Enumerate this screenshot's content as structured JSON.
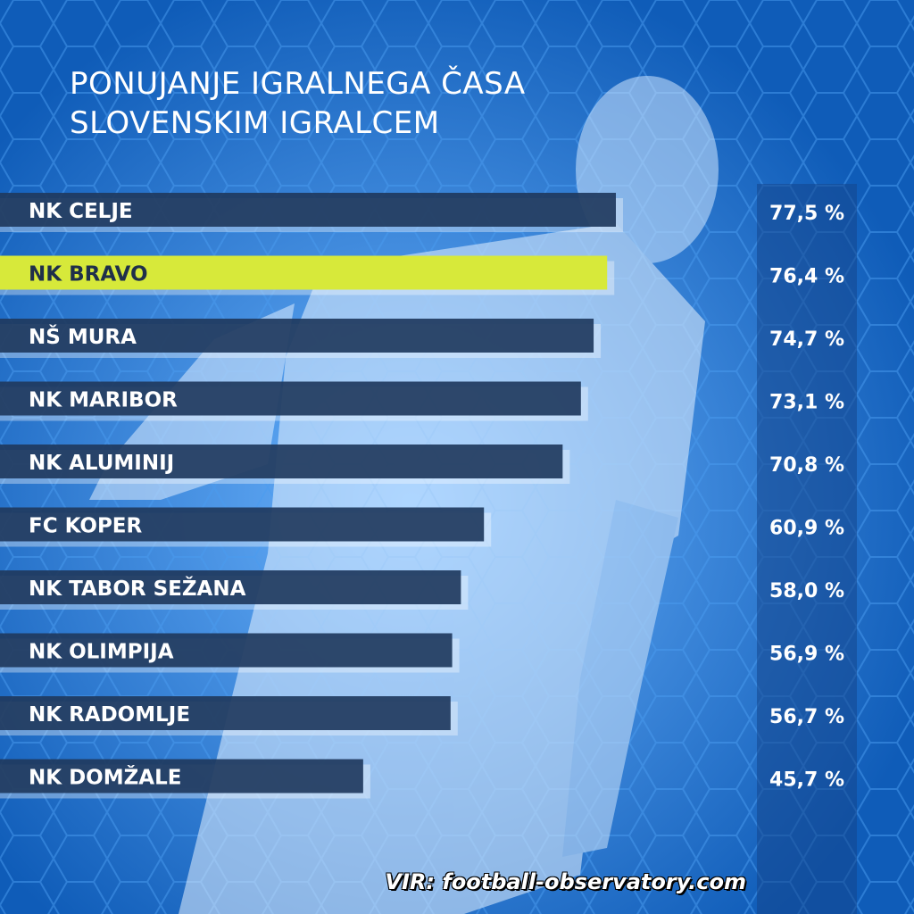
{
  "title_lines": [
    "PONUJANJE IGRALNEGA ČASA",
    "SLOVENSKIM IGRALCEM"
  ],
  "source": "VIR: football-observatory.com",
  "colors": {
    "bar": "#203a5e",
    "highlight_bar": "#d7e93a",
    "highlight_text": "#1f2f4a",
    "text": "#ffffff"
  },
  "chart_data": {
    "type": "bar",
    "orientation": "horizontal",
    "categories": [
      "NK CELJE",
      "NK BRAVO",
      "NŠ MURA",
      "NK MARIBOR",
      "NK ALUMINIJ",
      "FC KOPER",
      "NK TABOR SEŽANA",
      "NK OLIMPIJA",
      "NK RADOMLJE",
      "NK DOMŽALE"
    ],
    "values": [
      77.5,
      76.4,
      74.7,
      73.1,
      70.8,
      60.9,
      58.0,
      56.9,
      56.7,
      45.7
    ],
    "value_labels": [
      "77,5 %",
      "76,4 %",
      "74,7 %",
      "73,1 %",
      "70,8 %",
      "60,9 %",
      "58,0 %",
      "56,9 %",
      "56,7 %",
      "45,7 %"
    ],
    "highlighted": "NK BRAVO",
    "unit": "%"
  }
}
